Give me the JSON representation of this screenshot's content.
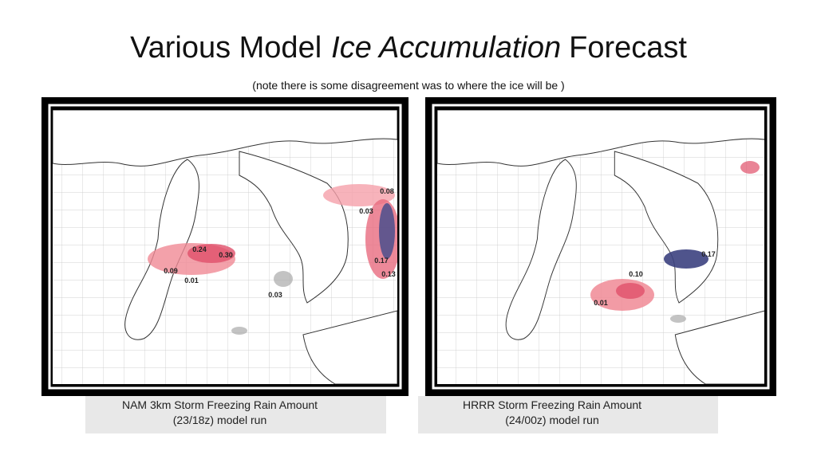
{
  "title": {
    "parts": [
      "Various Model",
      "Ice Accumulation",
      "Forecast"
    ]
  },
  "subtitle": "(note there is some   disagreement was to where the ice will be )",
  "panels": [
    {
      "labels": [
        "0.08",
        "0.03",
        "0.24",
        "0.30",
        "0.09",
        "0.01",
        "0.17",
        "0.13",
        "0.03"
      ],
      "caption": [
        "NAM 3km Storm Freezing Rain Amount",
        "(23/18z)   model run"
      ]
    },
    {
      "labels": [
        "0.10",
        "0.17",
        "0.01"
      ],
      "caption": [
        "HRRR Storm Freezing Rain Amount",
        "(24/00z)   model run"
      ]
    }
  ]
}
